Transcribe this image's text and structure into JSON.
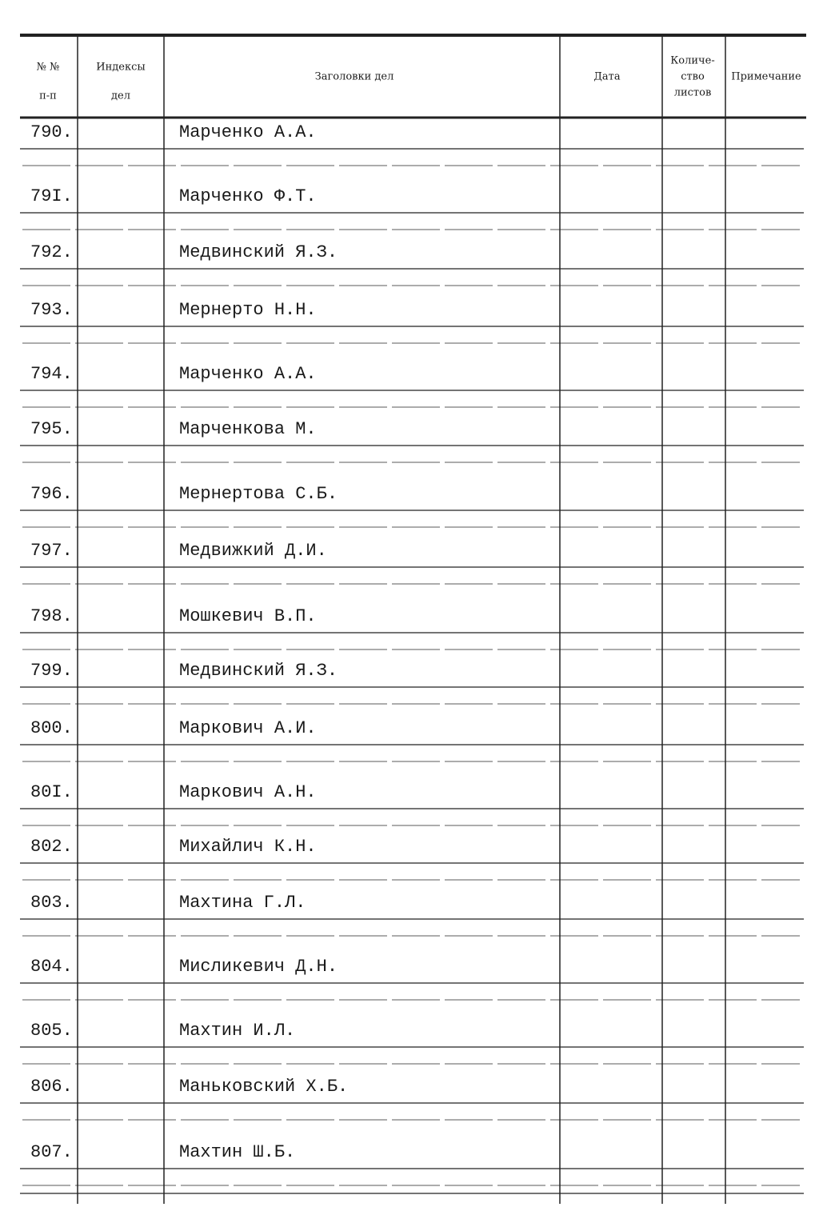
{
  "table": {
    "header": [
      [
        "№ №",
        "п-п"
      ],
      [
        "Индексы",
        "дел"
      ],
      [
        "Заголовки дел"
      ],
      [
        "Дата"
      ],
      [
        "Количе-",
        "ство",
        "листов"
      ],
      [
        "Примечание"
      ]
    ],
    "rows": [
      {
        "number": "790.",
        "title": "Марченко А.А."
      },
      {
        "number": "79I.",
        "title": "Марченко Ф.Т."
      },
      {
        "number": "792.",
        "title": "Медвинский Я.З."
      },
      {
        "number": "793.",
        "title": "Мернерто Н.Н."
      },
      {
        "number": "794.",
        "title": "Марченко А.А."
      },
      {
        "number": "795.",
        "title": "Марченкова М."
      },
      {
        "number": "796.",
        "title": "Мернертова С.Б."
      },
      {
        "number": "797.",
        "title": "Медвижкий Д.И."
      },
      {
        "number": "798.",
        "title": "Мошкевич В.П."
      },
      {
        "number": "799.",
        "title": "Медвинский Я.З."
      },
      {
        "number": "800.",
        "title": "Маркович А.И."
      },
      {
        "number": "80I.",
        "title": "Маркович А.Н."
      },
      {
        "number": "802.",
        "title": "Михайлич К.Н."
      },
      {
        "number": "803.",
        "title": "Махтина Г.Л."
      },
      {
        "number": "804.",
        "title": "Мисликевич Д.Н."
      },
      {
        "number": "805.",
        "title": "Махтин И.Л."
      },
      {
        "number": "806.",
        "title": "Маньковский Х.Б."
      },
      {
        "number": "807.",
        "title": "Махтин Ш.Б."
      }
    ]
  }
}
